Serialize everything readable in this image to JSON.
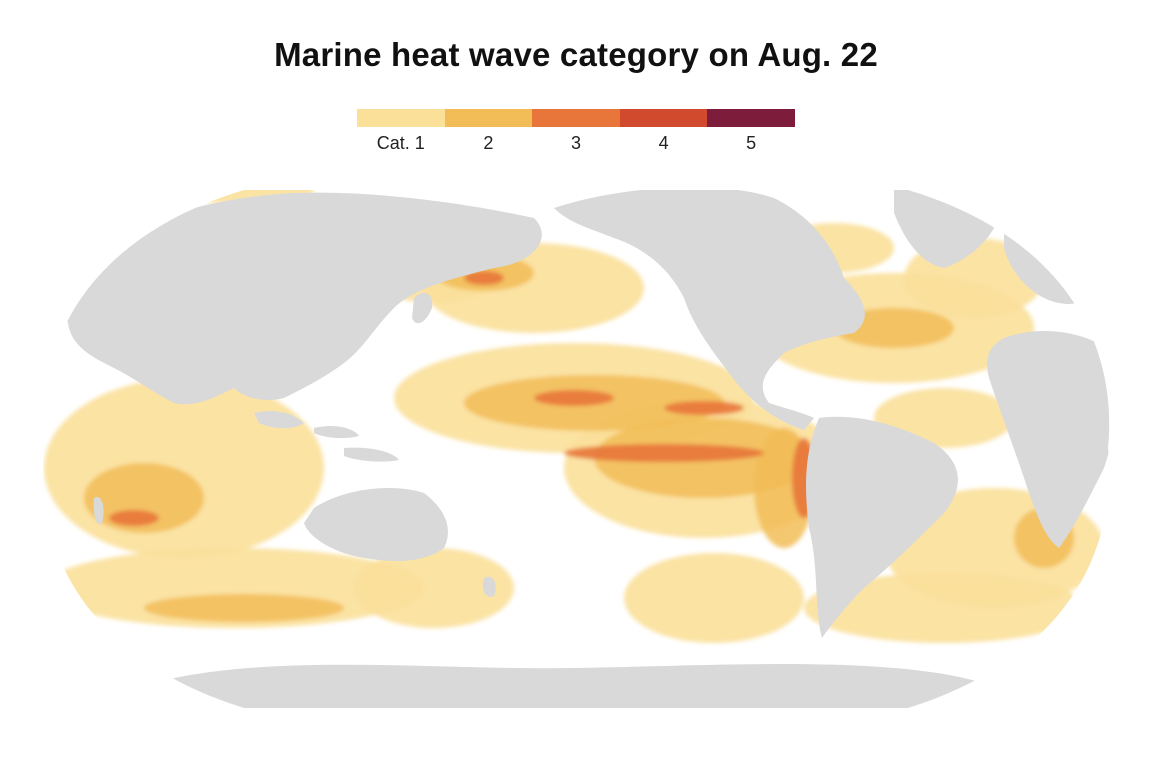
{
  "title": "Marine heat wave category on Aug. 22",
  "legend": {
    "items": [
      {
        "label": "Cat. 1",
        "color": "#fbe09a"
      },
      {
        "label": "2",
        "color": "#f2bd57"
      },
      {
        "label": "3",
        "color": "#e8763a"
      },
      {
        "label": "4",
        "color": "#d24a2e"
      },
      {
        "label": "5",
        "color": "#7e1d3b"
      }
    ]
  },
  "map": {
    "projection": "Robinson",
    "land_color": "#d9d9d9",
    "ocean_color": "#ffffff"
  }
}
